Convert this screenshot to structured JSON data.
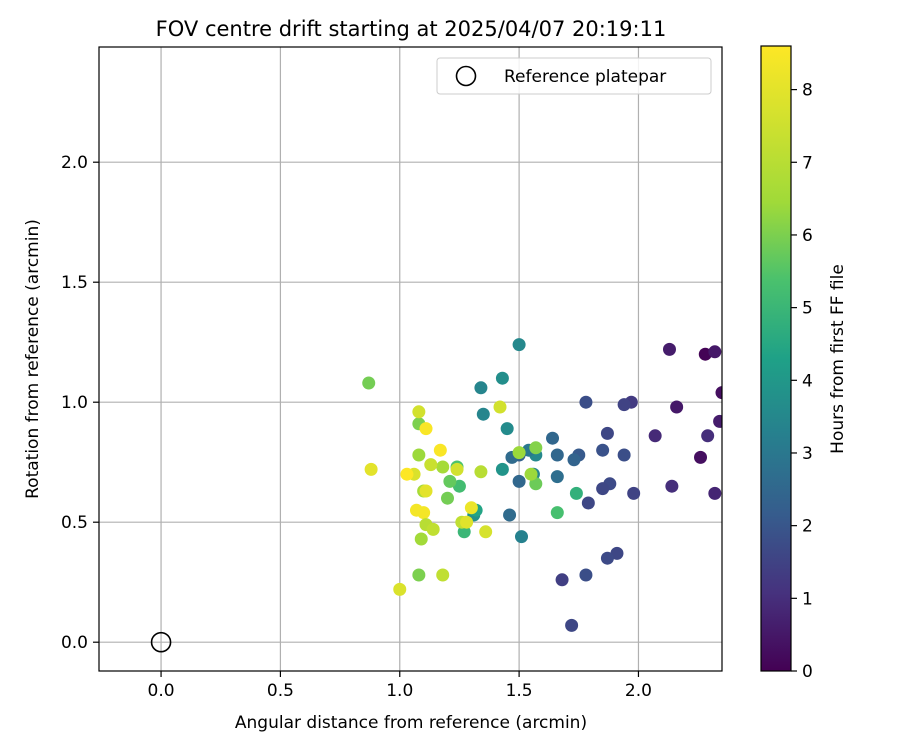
{
  "chart_data": {
    "type": "scatter",
    "title": "FOV centre drift starting at 2025/04/07 20:19:11",
    "xlabel": "Angular distance from reference (arcmin)",
    "ylabel": "Rotation from reference (arcmin)",
    "xlim": [
      -0.26,
      2.35
    ],
    "ylim": [
      -0.12,
      2.48
    ],
    "xticks": [
      "0.0",
      "0.5",
      "1.0",
      "1.5",
      "2.0"
    ],
    "yticks": [
      "0.0",
      "0.5",
      "1.0",
      "1.5",
      "2.0"
    ],
    "grid": true,
    "legend": {
      "placement": "top-right",
      "entries": [
        "Reference platepar"
      ]
    },
    "reference": {
      "x": 0.0,
      "y": 0.0
    },
    "colorbar": {
      "label": "Hours from first FF file",
      "min": 0,
      "max": 8.6,
      "ticks": [
        "0",
        "1",
        "2",
        "3",
        "4",
        "5",
        "6",
        "7",
        "8"
      ],
      "colormap": "viridis"
    },
    "points": [
      {
        "x": 2.28,
        "y": 1.2,
        "h": 0.05
      },
      {
        "x": 2.32,
        "y": 1.21,
        "h": 0.5
      },
      {
        "x": 2.35,
        "y": 1.04,
        "h": 0.3
      },
      {
        "x": 2.34,
        "y": 0.92,
        "h": 0.6
      },
      {
        "x": 2.29,
        "y": 0.86,
        "h": 1.0
      },
      {
        "x": 2.26,
        "y": 0.77,
        "h": 0.3
      },
      {
        "x": 2.32,
        "y": 0.62,
        "h": 0.8
      },
      {
        "x": 2.13,
        "y": 1.22,
        "h": 0.6
      },
      {
        "x": 2.16,
        "y": 0.98,
        "h": 0.5
      },
      {
        "x": 2.07,
        "y": 0.86,
        "h": 0.9
      },
      {
        "x": 2.14,
        "y": 0.65,
        "h": 1.0
      },
      {
        "x": 1.97,
        "y": 1.0,
        "h": 1.3
      },
      {
        "x": 1.94,
        "y": 0.99,
        "h": 1.5
      },
      {
        "x": 1.94,
        "y": 0.78,
        "h": 1.8
      },
      {
        "x": 1.98,
        "y": 0.62,
        "h": 1.5
      },
      {
        "x": 1.87,
        "y": 0.87,
        "h": 1.6
      },
      {
        "x": 1.85,
        "y": 0.8,
        "h": 1.9
      },
      {
        "x": 1.88,
        "y": 0.66,
        "h": 1.7
      },
      {
        "x": 1.85,
        "y": 0.64,
        "h": 1.6
      },
      {
        "x": 1.78,
        "y": 1.0,
        "h": 1.8
      },
      {
        "x": 1.79,
        "y": 0.58,
        "h": 1.6
      },
      {
        "x": 1.75,
        "y": 0.78,
        "h": 2.1
      },
      {
        "x": 1.73,
        "y": 0.76,
        "h": 2.4
      },
      {
        "x": 1.91,
        "y": 0.37,
        "h": 1.6
      },
      {
        "x": 1.87,
        "y": 0.35,
        "h": 1.7
      },
      {
        "x": 1.78,
        "y": 0.28,
        "h": 1.8
      },
      {
        "x": 1.68,
        "y": 0.26,
        "h": 1.4
      },
      {
        "x": 1.72,
        "y": 0.07,
        "h": 1.6
      },
      {
        "x": 1.66,
        "y": 0.78,
        "h": 2.5
      },
      {
        "x": 1.64,
        "y": 0.85,
        "h": 2.5
      },
      {
        "x": 1.66,
        "y": 0.69,
        "h": 2.7
      },
      {
        "x": 1.57,
        "y": 0.78,
        "h": 3.5
      },
      {
        "x": 1.54,
        "y": 0.8,
        "h": 3.0
      },
      {
        "x": 1.5,
        "y": 0.78,
        "h": 2.3
      },
      {
        "x": 1.47,
        "y": 0.77,
        "h": 2.6
      },
      {
        "x": 1.5,
        "y": 0.67,
        "h": 2.5
      },
      {
        "x": 1.56,
        "y": 0.7,
        "h": 3.4
      },
      {
        "x": 1.46,
        "y": 0.53,
        "h": 2.6
      },
      {
        "x": 1.51,
        "y": 0.44,
        "h": 3.3
      },
      {
        "x": 1.5,
        "y": 1.24,
        "h": 3.5
      },
      {
        "x": 1.43,
        "y": 1.1,
        "h": 3.7
      },
      {
        "x": 1.34,
        "y": 1.06,
        "h": 3.4
      },
      {
        "x": 1.35,
        "y": 0.95,
        "h": 3.4
      },
      {
        "x": 1.45,
        "y": 0.89,
        "h": 3.6
      },
      {
        "x": 1.43,
        "y": 0.72,
        "h": 3.9
      },
      {
        "x": 1.74,
        "y": 0.62,
        "h": 4.8
      },
      {
        "x": 1.66,
        "y": 0.54,
        "h": 5.3
      },
      {
        "x": 1.57,
        "y": 0.81,
        "h": 6.1
      },
      {
        "x": 1.57,
        "y": 0.66,
        "h": 5.8
      },
      {
        "x": 1.55,
        "y": 0.7,
        "h": 6.4
      },
      {
        "x": 1.5,
        "y": 0.79,
        "h": 6.4
      },
      {
        "x": 1.42,
        "y": 0.98,
        "h": 7.6
      },
      {
        "x": 1.34,
        "y": 0.71,
        "h": 7.0
      },
      {
        "x": 1.31,
        "y": 0.53,
        "h": 3.8
      },
      {
        "x": 1.32,
        "y": 0.55,
        "h": 4.4
      },
      {
        "x": 1.27,
        "y": 0.46,
        "h": 5.0
      },
      {
        "x": 1.25,
        "y": 0.65,
        "h": 5.2
      },
      {
        "x": 1.24,
        "y": 0.73,
        "h": 5.4
      },
      {
        "x": 1.21,
        "y": 0.67,
        "h": 5.7
      },
      {
        "x": 1.2,
        "y": 0.6,
        "h": 5.9
      },
      {
        "x": 1.18,
        "y": 0.73,
        "h": 6.6
      },
      {
        "x": 1.24,
        "y": 0.72,
        "h": 7.6
      },
      {
        "x": 1.26,
        "y": 0.5,
        "h": 7.2
      },
      {
        "x": 1.28,
        "y": 0.5,
        "h": 7.9
      },
      {
        "x": 1.3,
        "y": 0.56,
        "h": 8.2
      },
      {
        "x": 1.36,
        "y": 0.46,
        "h": 7.7
      },
      {
        "x": 1.17,
        "y": 0.8,
        "h": 8.5
      },
      {
        "x": 1.13,
        "y": 0.74,
        "h": 7.4
      },
      {
        "x": 1.1,
        "y": 0.63,
        "h": 6.6
      },
      {
        "x": 1.11,
        "y": 0.63,
        "h": 8.0
      },
      {
        "x": 1.1,
        "y": 0.54,
        "h": 8.4
      },
      {
        "x": 1.11,
        "y": 0.49,
        "h": 7.0
      },
      {
        "x": 1.14,
        "y": 0.47,
        "h": 7.2
      },
      {
        "x": 1.09,
        "y": 0.43,
        "h": 6.5
      },
      {
        "x": 1.07,
        "y": 0.55,
        "h": 8.4
      },
      {
        "x": 1.06,
        "y": 0.7,
        "h": 7.8
      },
      {
        "x": 1.03,
        "y": 0.7,
        "h": 8.6
      },
      {
        "x": 1.08,
        "y": 0.78,
        "h": 6.4
      },
      {
        "x": 1.08,
        "y": 0.91,
        "h": 6.0
      },
      {
        "x": 1.08,
        "y": 0.96,
        "h": 7.6
      },
      {
        "x": 1.11,
        "y": 0.89,
        "h": 8.5
      },
      {
        "x": 1.08,
        "y": 0.28,
        "h": 6.0
      },
      {
        "x": 1.18,
        "y": 0.28,
        "h": 7.2
      },
      {
        "x": 1.0,
        "y": 0.22,
        "h": 7.8
      },
      {
        "x": 0.88,
        "y": 0.72,
        "h": 8.0
      },
      {
        "x": 0.87,
        "y": 1.08,
        "h": 5.9
      }
    ]
  }
}
